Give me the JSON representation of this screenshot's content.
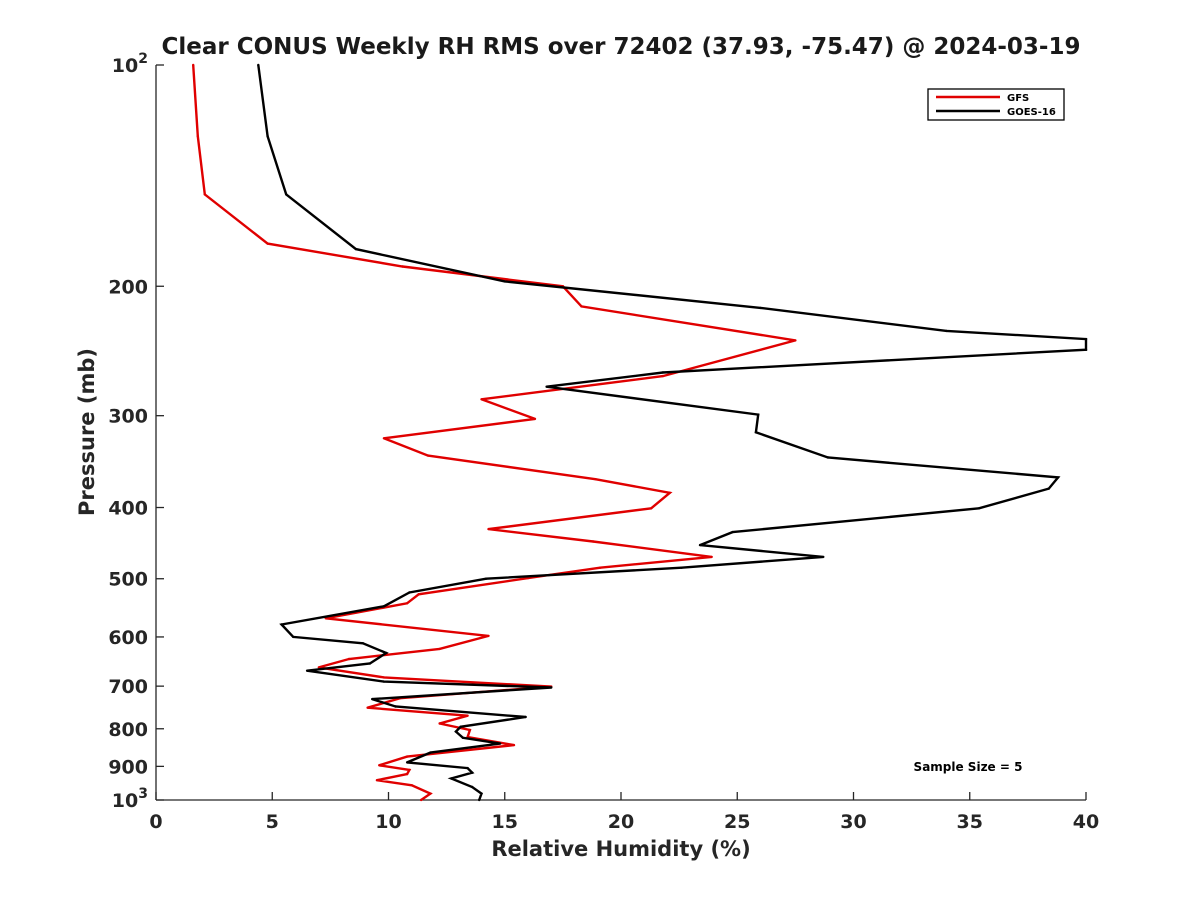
{
  "chart_data": {
    "type": "line",
    "title": "Clear CONUS Weekly RH RMS over 72402 (37.93, -75.47) @ 2024-03-19",
    "xlabel": "Relative Humidity (%)",
    "ylabel": "Pressure (mb)",
    "xlim": [
      0,
      40
    ],
    "ylim": [
      100,
      1000
    ],
    "yscale": "log",
    "y_reversed": true,
    "x_ticks": [
      0,
      5,
      10,
      15,
      20,
      25,
      30,
      35,
      40
    ],
    "x_tick_labels": [
      "0",
      "5",
      "10",
      "15",
      "20",
      "25",
      "30",
      "35",
      "40"
    ],
    "y_ticks": [
      100,
      200,
      300,
      400,
      500,
      600,
      700,
      800,
      900,
      1000
    ],
    "y_tick_labels": [
      {
        "value": 100,
        "base": "10",
        "exp": "2"
      },
      {
        "value": 200,
        "base": "200",
        "exp": ""
      },
      {
        "value": 300,
        "base": "300",
        "exp": ""
      },
      {
        "value": 400,
        "base": "400",
        "exp": ""
      },
      {
        "value": 500,
        "base": "500",
        "exp": ""
      },
      {
        "value": 600,
        "base": "600",
        "exp": ""
      },
      {
        "value": 700,
        "base": "700",
        "exp": ""
      },
      {
        "value": 800,
        "base": "800",
        "exp": ""
      },
      {
        "value": 900,
        "base": "900",
        "exp": ""
      },
      {
        "value": 1000,
        "base": "10",
        "exp": "3"
      }
    ],
    "legend_position": "top-right",
    "annotation": "Sample Size = 5",
    "series": [
      {
        "name": "GFS",
        "color": "#e00000",
        "points": [
          [
            1.6,
            100
          ],
          [
            1.8,
            125
          ],
          [
            2.1,
            150
          ],
          [
            4.8,
            175
          ],
          [
            10.6,
            188
          ],
          [
            17.5,
            200
          ],
          [
            18.3,
            213
          ],
          [
            27.5,
            237
          ],
          [
            21.8,
            265
          ],
          [
            14.0,
            285
          ],
          [
            16.3,
            303
          ],
          [
            9.8,
            322
          ],
          [
            11.7,
            340
          ],
          [
            18.9,
            366
          ],
          [
            22.1,
            382
          ],
          [
            21.3,
            401
          ],
          [
            14.3,
            428
          ],
          [
            18.8,
            445
          ],
          [
            23.9,
            467
          ],
          [
            19.1,
            483
          ],
          [
            16.0,
            499
          ],
          [
            11.3,
            525
          ],
          [
            10.8,
            540
          ],
          [
            7.3,
            566
          ],
          [
            14.3,
            598
          ],
          [
            12.2,
            623
          ],
          [
            8.3,
            643
          ],
          [
            7.0,
            660
          ],
          [
            9.8,
            681
          ],
          [
            17.0,
            701
          ],
          [
            10.5,
            727
          ],
          [
            9.1,
            749
          ],
          [
            13.4,
            768
          ],
          [
            12.2,
            787
          ],
          [
            13.5,
            803
          ],
          [
            13.4,
            821
          ],
          [
            15.4,
            842
          ],
          [
            10.8,
            873
          ],
          [
            9.6,
            897
          ],
          [
            10.9,
            910
          ],
          [
            10.8,
            922
          ],
          [
            9.5,
            940
          ],
          [
            11.0,
            955
          ],
          [
            11.8,
            980
          ],
          [
            11.4,
            1000
          ]
        ]
      },
      {
        "name": "GOES-16",
        "color": "#000000",
        "points": [
          [
            4.4,
            100
          ],
          [
            4.8,
            125
          ],
          [
            5.6,
            150
          ],
          [
            8.6,
            178
          ],
          [
            15.0,
            197
          ],
          [
            26.0,
            214
          ],
          [
            34.0,
            230
          ],
          [
            40.0,
            236
          ],
          [
            40.0,
            244
          ],
          [
            21.8,
            262
          ],
          [
            16.8,
            274
          ],
          [
            25.9,
            299
          ],
          [
            25.8,
            316
          ],
          [
            28.9,
            342
          ],
          [
            38.8,
            364
          ],
          [
            38.4,
            377
          ],
          [
            35.4,
            401
          ],
          [
            24.8,
            432
          ],
          [
            23.4,
            450
          ],
          [
            28.7,
            467
          ],
          [
            22.6,
            483
          ],
          [
            14.2,
            500
          ],
          [
            10.9,
            522
          ],
          [
            9.8,
            545
          ],
          [
            5.4,
            577
          ],
          [
            5.9,
            600
          ],
          [
            8.9,
            612
          ],
          [
            9.9,
            631
          ],
          [
            9.2,
            652
          ],
          [
            6.5,
            667
          ],
          [
            9.8,
            690
          ],
          [
            17.0,
            703
          ],
          [
            9.3,
            729
          ],
          [
            10.3,
            746
          ],
          [
            15.9,
            771
          ],
          [
            13.1,
            795
          ],
          [
            12.9,
            807
          ],
          [
            13.2,
            823
          ],
          [
            14.8,
            838
          ],
          [
            11.8,
            862
          ],
          [
            10.8,
            889
          ],
          [
            13.4,
            905
          ],
          [
            13.6,
            918
          ],
          [
            12.7,
            935
          ],
          [
            13.6,
            960
          ],
          [
            14.0,
            980
          ],
          [
            13.9,
            1000
          ]
        ]
      }
    ]
  }
}
